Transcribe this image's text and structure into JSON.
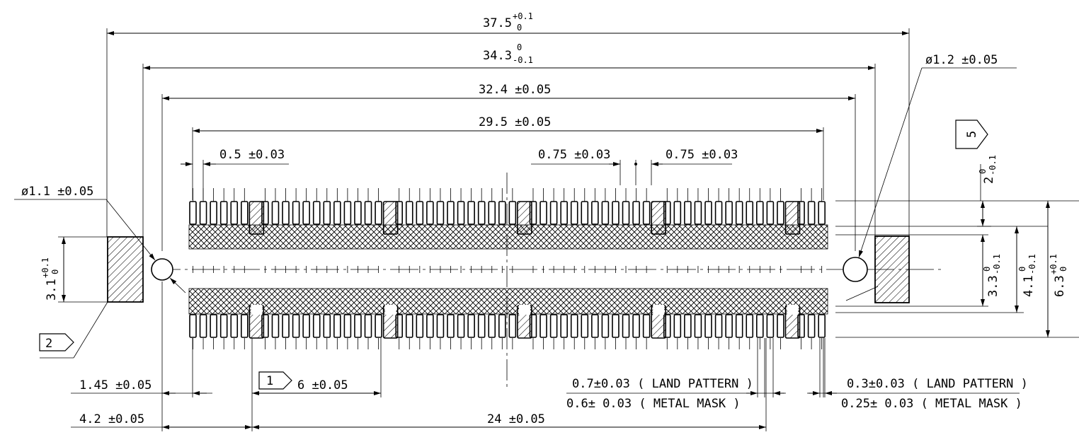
{
  "drawing": {
    "dim_overall_width": {
      "value": "37.5",
      "upper": "+0.1",
      "lower": "0"
    },
    "dim_holes_pitch": {
      "value": "34.3",
      "upper": "0",
      "lower": "-0.1"
    },
    "dim_slots_pitch": "32.4 ±0.05",
    "dim_pad_span": "29.5 ±0.05",
    "dim_pad_pitch": "0.5 ±0.03",
    "dim_gap_left": "0.75 ±0.03",
    "dim_gap_right": "0.75 ±0.03",
    "dim_left_hole": "ø1.1 ±0.05",
    "dim_right_hole": "ø1.2 ±0.05",
    "dim_left_slot_h": {
      "value": "3.1",
      "upper": "+0.1",
      "lower": "0"
    },
    "dim_top_row": {
      "value": "2",
      "upper": "0",
      "lower": "-0.1"
    },
    "dim_inner_rows": {
      "value": "3.3",
      "upper": "0",
      "lower": "-0.1"
    },
    "dim_outer_rows": {
      "value": "4.1",
      "upper": "0",
      "lower": "-0.1"
    },
    "dim_total_h": {
      "value": "6.3",
      "upper": "+0.1",
      "lower": "0"
    },
    "dim_slot_to_pad": "1.45 ±0.05",
    "dim_slot_to_ref": "4.2 ±0.05",
    "dim_group_pitch": "6 ±0.05",
    "dim_group_span": "24 ±0.05",
    "land_pattern_07": "0.7±0.03 ( LAND PATTERN )",
    "metal_mask_06": "0.6± 0.03 ( METAL MASK )",
    "land_pattern_03": "0.3±0.03 ( LAND PATTERN )",
    "metal_mask_025": "0.25± 0.03 ( METAL MASK )",
    "note_1": "1",
    "note_2": "2",
    "note_5": "5"
  }
}
